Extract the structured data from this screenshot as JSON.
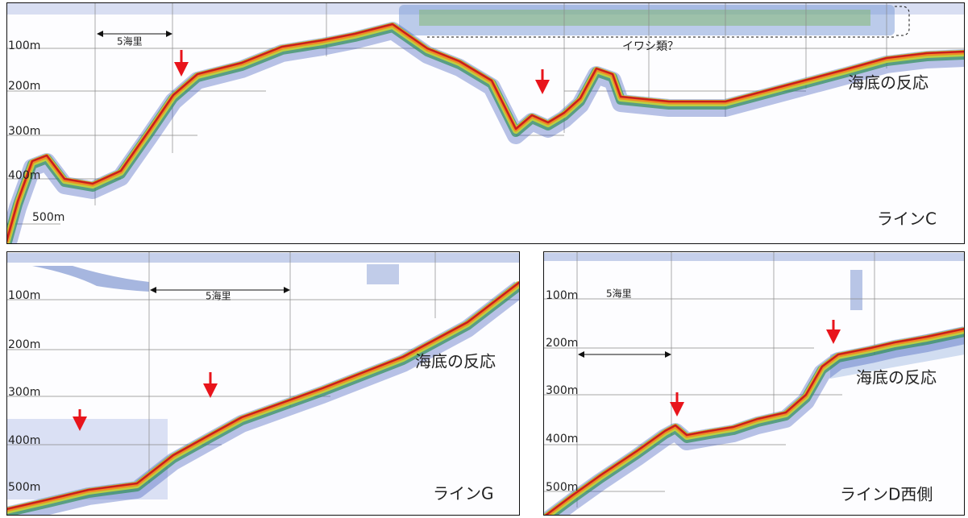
{
  "panels": [
    {
      "depth_labels": [
        "100m",
        "200m",
        "300m",
        "400m",
        "500m"
      ],
      "scale_label": "5海里",
      "annotation": "イワシ類？",
      "seabed_label": "海底の反応",
      "line_label": "ラインC"
    },
    {
      "depth_labels": [
        "100m",
        "200m",
        "300m",
        "400m",
        "500m"
      ],
      "scale_label": "5海里",
      "seabed_label": "海底の反応",
      "line_label": "ラインG"
    },
    {
      "depth_labels": [
        "100m",
        "200m",
        "300m",
        "400m",
        "500m"
      ],
      "scale_label": "5海里",
      "seabed_label": "海底の反応",
      "line_label": "ラインD西側"
    }
  ]
}
